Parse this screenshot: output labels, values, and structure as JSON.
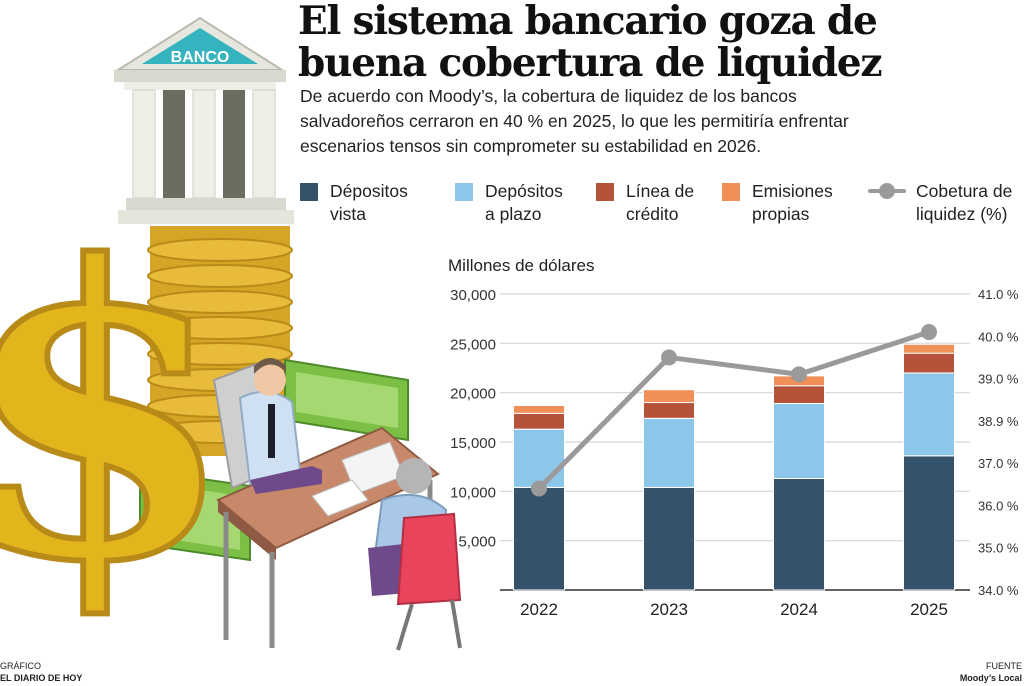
{
  "title_line1": "El sistema bancario goza de",
  "title_line2": "buena cobertura de liquidez",
  "subtitle": "De acuerdo con Moody’s, la cobertura de liquidez de los bancos salvadoreños cerraron en 40 % en 2025, lo que les permitiría enfrentar escenarios tensos sin comprometer su estabilidad en 2026.",
  "illustration": {
    "building_sign": "BANCO"
  },
  "legend": [
    {
      "label": "Dépositos\nvista",
      "color": "#34536b",
      "kind": "box"
    },
    {
      "label": "Depósitos\na plazo",
      "color": "#8cc7ea",
      "kind": "box"
    },
    {
      "label": "Línea de\ncrédito",
      "color": "#b5533a",
      "kind": "box"
    },
    {
      "label": "Emisiones\npropias",
      "color": "#f08f58",
      "kind": "box"
    },
    {
      "label": "Cobetura de\nliquidez (%)",
      "color": "#9a9a9a",
      "kind": "line"
    }
  ],
  "unit_label": "Millones de dólares",
  "footer": {
    "left_top": "GRÁFICO",
    "left_bottom": "EL DIARIO DE HOY",
    "right_top": "FUENTE",
    "right_bottom": "Moody’s Local"
  },
  "chart_data": {
    "type": "bar",
    "stacked": true,
    "categories": [
      "2022",
      "2023",
      "2024",
      "2025"
    ],
    "series": [
      {
        "name": "Dépositos vista",
        "color": "#34536b",
        "values": [
          10400,
          10400,
          11300,
          13600
        ]
      },
      {
        "name": "Depósitos a plazo",
        "color": "#8cc7ea",
        "values": [
          5900,
          7000,
          7600,
          8400
        ]
      },
      {
        "name": "Línea de crédito",
        "color": "#b5533a",
        "values": [
          1600,
          1600,
          1800,
          2000
        ]
      },
      {
        "name": "Emisiones propias",
        "color": "#f08f58",
        "values": [
          800,
          1300,
          1000,
          900
        ]
      }
    ],
    "line_series": {
      "name": "Cobetura de liquidez (%)",
      "color": "#9a9a9a",
      "values": [
        36.4,
        39.5,
        39.1,
        40.1
      ]
    },
    "y_left": {
      "ticks": [
        0,
        5000,
        10000,
        15000,
        20000,
        25000,
        30000
      ],
      "labels": [
        "",
        "5,000",
        "10,000",
        "15,000",
        "20,000",
        "25,000",
        "30,000"
      ],
      "range": [
        0,
        30000
      ]
    },
    "y_right": {
      "labels": [
        "34.0 %",
        "35.0 %",
        "36.0 %",
        "37.0 %",
        "38.9 %",
        "39.0 %",
        "40.0 %",
        "41.0 %"
      ],
      "range": [
        34.0,
        41.0
      ]
    },
    "grid": true
  }
}
